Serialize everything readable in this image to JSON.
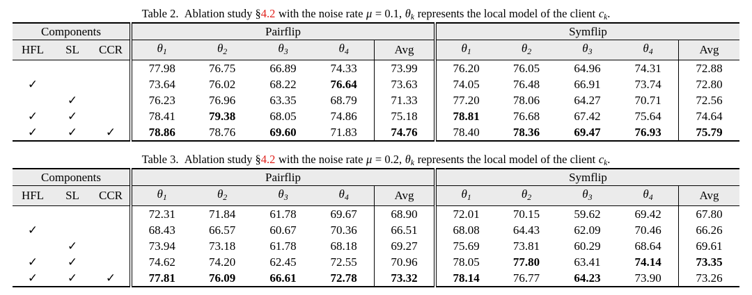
{
  "check": "✓",
  "tables": [
    {
      "caption": [
        "Table 2.",
        "Ablation study §",
        "4.2",
        "with the noise rate",
        "μ",
        "= 0.1,",
        "θ",
        "k",
        "represents the local model of the client",
        "c",
        "k",
        "."
      ],
      "groups": [
        "Components",
        "Pairflip",
        "Symflip"
      ],
      "components": [
        "HFL",
        "SL",
        "CCR"
      ],
      "columns": [
        {
          "base": "θ",
          "sub": "1"
        },
        {
          "base": "θ",
          "sub": "2"
        },
        {
          "base": "θ",
          "sub": "3"
        },
        {
          "base": "θ",
          "sub": "4"
        },
        {
          "base": "Avg"
        }
      ],
      "rows": [
        {
          "components": [
            false,
            false,
            false
          ],
          "values": [
            "77.98",
            "76.75",
            "66.89",
            "74.33",
            "73.99",
            "76.20",
            "76.05",
            "64.96",
            "74.31",
            "72.88"
          ],
          "bold": []
        },
        {
          "components": [
            true,
            false,
            false
          ],
          "values": [
            "73.64",
            "76.02",
            "68.22",
            "76.64",
            "73.63",
            "74.05",
            "76.48",
            "66.91",
            "73.74",
            "72.80"
          ],
          "bold": [
            3
          ]
        },
        {
          "components": [
            false,
            true,
            false
          ],
          "values": [
            "76.23",
            "76.96",
            "63.35",
            "68.79",
            "71.33",
            "77.20",
            "78.06",
            "64.27",
            "70.71",
            "72.56"
          ],
          "bold": []
        },
        {
          "components": [
            true,
            true,
            false
          ],
          "values": [
            "78.41",
            "79.38",
            "68.05",
            "74.86",
            "75.18",
            "78.81",
            "76.68",
            "67.42",
            "75.64",
            "74.64"
          ],
          "bold": [
            1,
            5
          ]
        },
        {
          "components": [
            true,
            true,
            true
          ],
          "values": [
            "78.86",
            "78.76",
            "69.60",
            "71.83",
            "74.76",
            "78.40",
            "78.36",
            "69.47",
            "76.93",
            "75.79"
          ],
          "bold": [
            0,
            2,
            4,
            6,
            7,
            8,
            9
          ]
        }
      ]
    },
    {
      "caption": [
        "Table 3.",
        "Ablation study §",
        "4.2",
        "with the noise rate",
        "μ",
        "= 0.2,",
        "θ",
        "k",
        "represents the local model of the client",
        "c",
        "k",
        "."
      ],
      "groups": [
        "Components",
        "Pairflip",
        "Symflip"
      ],
      "components": [
        "HFL",
        "SL",
        "CCR"
      ],
      "columns": [
        {
          "base": "θ",
          "sub": "1"
        },
        {
          "base": "θ",
          "sub": "2"
        },
        {
          "base": "θ",
          "sub": "3"
        },
        {
          "base": "θ",
          "sub": "4"
        },
        {
          "base": "Avg"
        }
      ],
      "rows": [
        {
          "components": [
            false,
            false,
            false
          ],
          "values": [
            "72.31",
            "71.84",
            "61.78",
            "69.67",
            "68.90",
            "72.01",
            "70.15",
            "59.62",
            "69.42",
            "67.80"
          ],
          "bold": []
        },
        {
          "components": [
            true,
            false,
            false
          ],
          "values": [
            "68.43",
            "66.57",
            "60.67",
            "70.36",
            "66.51",
            "68.08",
            "64.43",
            "62.09",
            "70.46",
            "66.26"
          ],
          "bold": []
        },
        {
          "components": [
            false,
            true,
            false
          ],
          "values": [
            "73.94",
            "73.18",
            "61.78",
            "68.18",
            "69.27",
            "75.69",
            "73.81",
            "60.29",
            "68.64",
            "69.61"
          ],
          "bold": []
        },
        {
          "components": [
            true,
            true,
            false
          ],
          "values": [
            "74.62",
            "74.20",
            "62.45",
            "72.55",
            "70.96",
            "78.05",
            "77.80",
            "63.41",
            "74.14",
            "73.35"
          ],
          "bold": [
            6,
            8,
            9
          ]
        },
        {
          "components": [
            true,
            true,
            true
          ],
          "values": [
            "77.81",
            "76.09",
            "66.61",
            "72.78",
            "73.32",
            "78.14",
            "76.77",
            "64.23",
            "73.90",
            "73.26"
          ],
          "bold": [
            0,
            1,
            2,
            3,
            4,
            5,
            7
          ]
        }
      ]
    }
  ]
}
